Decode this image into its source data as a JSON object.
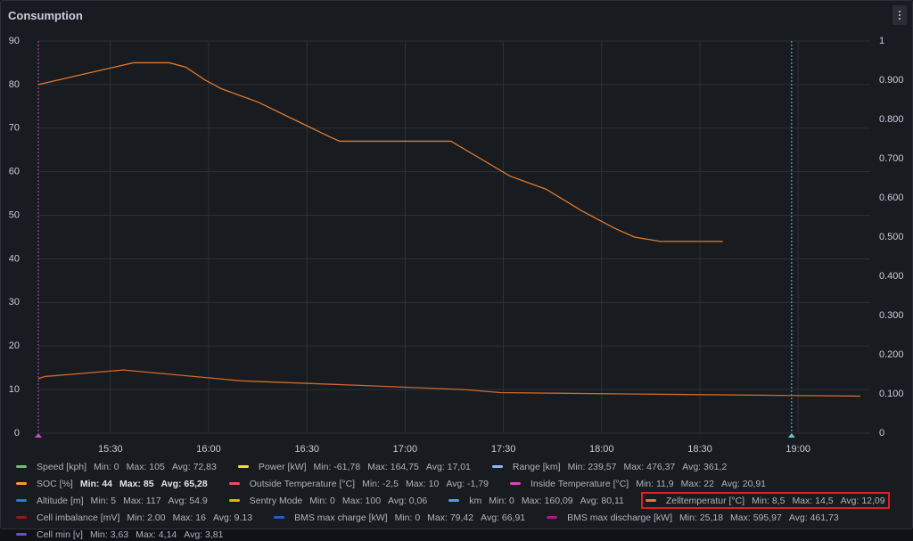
{
  "chart_data": {
    "type": "line",
    "title": "Consumption",
    "x_format": "time",
    "xlim": [
      "15:08",
      "19:22"
    ],
    "xticks": [
      "15:30",
      "16:00",
      "16:30",
      "17:00",
      "17:30",
      "18:00",
      "18:30",
      "19:00"
    ],
    "ylim": [
      0,
      90
    ],
    "yticks": [
      0,
      10,
      20,
      30,
      40,
      50,
      60,
      70,
      80,
      90
    ],
    "y2lim": [
      0,
      1
    ],
    "y2ticks": [
      0,
      {
        "value": 0.1,
        "label": "0.100"
      },
      {
        "value": 0.2,
        "label": "0.200"
      },
      {
        "value": 0.3,
        "label": "0.300"
      },
      {
        "value": 0.4,
        "label": "0.400"
      },
      {
        "value": 0.5,
        "label": "0.500"
      },
      {
        "value": 0.6,
        "label": "0.600"
      },
      {
        "value": 0.7,
        "label": "0.700"
      },
      {
        "value": 0.8,
        "label": "0.800"
      },
      {
        "value": 0.9,
        "label": "0.900"
      },
      1
    ],
    "grid": true,
    "markers": [
      {
        "x": "15:08",
        "color": "#c94bc9"
      },
      {
        "x": "18:58",
        "color": "#5fc4d4"
      }
    ],
    "series": [
      {
        "name": "SOC [%]",
        "color": "#e57a2e",
        "x": [
          "15:08",
          "15:37",
          "15:48",
          "15:53",
          "15:59",
          "16:04",
          "16:15",
          "16:26",
          "16:37",
          "16:40",
          "17:14",
          "17:23",
          "17:32",
          "17:43",
          "17:54",
          "18:04",
          "18:10",
          "18:18",
          "18:37"
        ],
        "values": [
          80,
          85,
          85,
          84,
          81,
          79,
          76,
          72,
          68,
          67,
          67,
          63,
          59,
          56,
          51,
          47,
          45,
          44,
          44
        ]
      },
      {
        "name": "Zelltemperatur [°C]",
        "color": "#d2692a",
        "x": [
          "15:08",
          "15:10",
          "15:34",
          "16:10",
          "16:45",
          "17:18",
          "17:29",
          "18:07",
          "19:19"
        ],
        "values": [
          12.5,
          13,
          14.5,
          12,
          11,
          10,
          9.3,
          9,
          8.5
        ]
      }
    ],
    "legend": [
      {
        "name": "Speed [kph]",
        "color": "#73bf69",
        "stats": [
          "Min: 0",
          "Max: 105",
          "Avg: 72,83"
        ]
      },
      {
        "name": "Power [kW]",
        "color": "#fade2a",
        "stats": [
          "Min: -61,78",
          "Max: 164,75",
          "Avg: 17,01"
        ]
      },
      {
        "name": "Range [km]",
        "color": "#8ab8ff",
        "stats": [
          "Min: 239,57",
          "Max: 476,37",
          "Avg: 361,2"
        ]
      },
      {
        "name": "SOC [%]",
        "color": "#ff9830",
        "stats": [
          "Min: 44",
          "Max: 85",
          "Avg: 65,28"
        ],
        "highlight": "bold"
      },
      {
        "name": "Outside Temperature [°C]",
        "color": "#f2495c",
        "stats": [
          "Min: -2,5",
          "Max: 10",
          "Avg: -1,79"
        ]
      },
      {
        "name": "Inside Temperature [°C]",
        "color": "#c94bc9",
        "stats": [
          "Min: 11,9",
          "Max: 22",
          "Avg: 20,91"
        ]
      },
      {
        "name": "Altitude [m]",
        "color": "#3274d9",
        "stats": [
          "Min: 5",
          "Max: 117",
          "Avg: 54.9"
        ]
      },
      {
        "name": "Sentry Mode",
        "color": "#e0b400",
        "stats": [
          "Min: 0",
          "Max: 100",
          "Avg: 0,06"
        ]
      },
      {
        "name": "km",
        "color": "#5794f2",
        "stats": [
          "Min: 0",
          "Max: 160,09",
          "Avg: 80,11"
        ]
      },
      {
        "name": "Zelltemperatur [°C]",
        "color": "#e57a2e",
        "stats": [
          "Min: 8,5",
          "Max: 14,5",
          "Avg: 12,09"
        ],
        "highlight": "box"
      },
      {
        "name": "Cell imbalance [mV]",
        "color": "#8e1c1c",
        "stats": [
          "Min: 2.00",
          "Max: 16",
          "Avg: 9.13"
        ]
      },
      {
        "name": "BMS max charge [kW]",
        "color": "#1f60c4",
        "stats": [
          "Min: 0",
          "Max: 79,42",
          "Avg: 66,91"
        ]
      },
      {
        "name": "BMS max discharge [kW]",
        "color": "#a31c8f",
        "stats": [
          "Min: 25,18",
          "Max: 595,97",
          "Avg: 461,73"
        ]
      },
      {
        "name": "Cell min [v]",
        "color": "#6b4fbf",
        "stats": [
          "Min: 3,63",
          "Max: 4,14",
          "Avg: 3,81"
        ]
      }
    ]
  }
}
